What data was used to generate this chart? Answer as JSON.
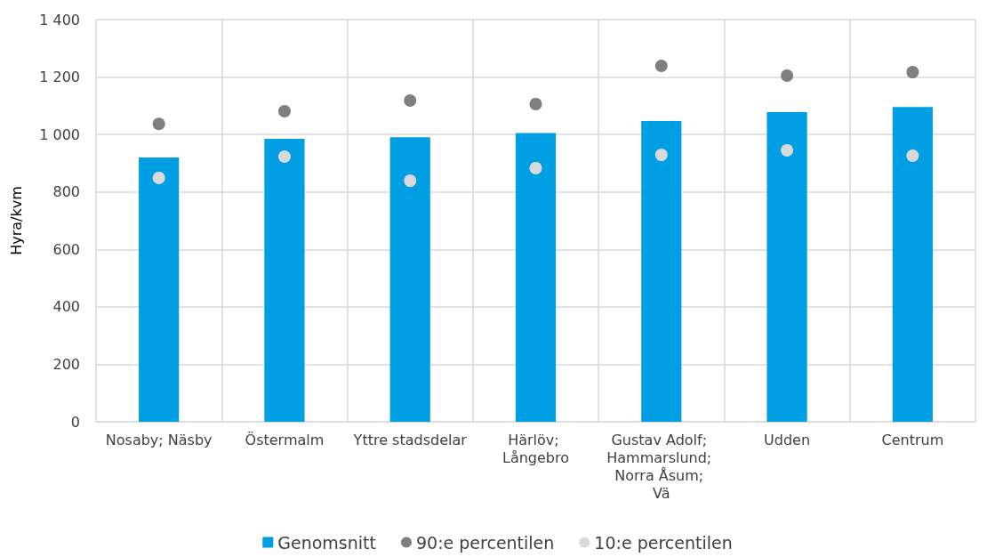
{
  "chart_data": {
    "type": "bar",
    "ylabel": "Hyra/kvm",
    "categories": [
      "Nosaby; Näsby",
      "Östermalm",
      "Yttre stadsdelar",
      "Härlöv; Långebro",
      "Gustav Adolf; Hammarslund; Norra Åsum; Vä",
      "Udden",
      "Centrum"
    ],
    "series": [
      {
        "name": "Genomsnitt",
        "color": "#009fe3",
        "values": [
          920,
          985,
          990,
          1005,
          1047,
          1078,
          1096
        ]
      },
      {
        "name": "90:e percentilen",
        "type": "scatter",
        "marker": "circle",
        "color": "#7f7f7f",
        "x": [
          "Nosaby; Näsby",
          "Östermalm",
          "Yttre stadsdelar",
          "Härlöv; Långebro",
          "Gustav Adolf; Hammarslund; Norra Åsum; Vä",
          "Udden",
          "Centrum"
        ],
        "values": [
          1037,
          1081,
          1118,
          1106,
          1239,
          1205,
          1217
        ]
      },
      {
        "name": "10:e percentilen",
        "type": "scatter",
        "marker": "circle",
        "color": "#d9d9d9",
        "x": [
          "Nosaby; Näsby",
          "Östermalm",
          "Yttre stadsdelar",
          "Härlöv; Långebro",
          "Gustav Adolf; Hammarslund; Norra Åsum; Vä",
          "Udden",
          "Centrum"
        ],
        "values": [
          849,
          923,
          839,
          883,
          929,
          945,
          926
        ]
      }
    ],
    "ylim": [
      0,
      1400
    ],
    "yticks": [
      0,
      200,
      400,
      600,
      800,
      {
        "value": 1000,
        "label": "1 000"
      },
      {
        "value": 1200,
        "label": "1 200"
      },
      {
        "value": 1400,
        "label": "1 400"
      }
    ],
    "grid": true,
    "legend": "bottom"
  }
}
